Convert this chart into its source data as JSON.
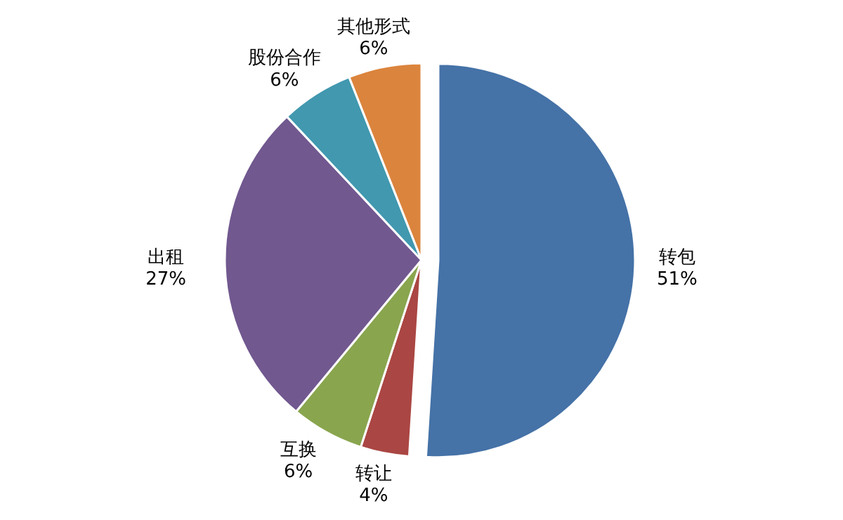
{
  "chart_data": {
    "type": "pie",
    "categories": [
      "转包",
      "转让",
      "互换",
      "出租",
      "股份合作",
      "其他形式"
    ],
    "values": [
      51,
      4,
      6,
      27,
      6,
      6
    ],
    "value_labels": [
      "51%",
      "4%",
      "6%",
      "27%",
      "6%",
      "6%"
    ],
    "colors": [
      "#4572a7",
      "#aa4643",
      "#89a54e",
      "#71588f",
      "#4198af",
      "#db843d"
    ]
  }
}
